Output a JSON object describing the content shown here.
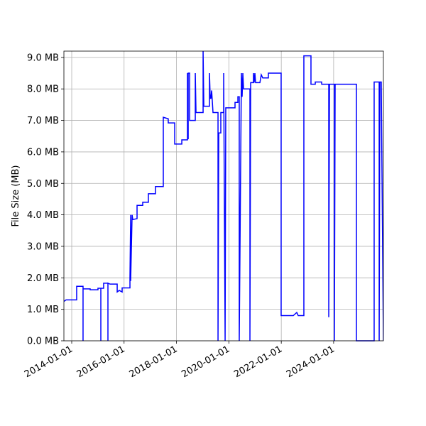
{
  "chart_data": {
    "type": "line",
    "ylabel": "File Size (MB)",
    "color": "#0000ff",
    "grid": true,
    "xlim": [
      "2013-09-14",
      "2025-11-25"
    ],
    "xticks": [
      "2014-01-01",
      "2016-01-01",
      "2018-01-01",
      "2020-01-01",
      "2022-01-01",
      "2024-01-01"
    ],
    "ylim": [
      0,
      9.2
    ],
    "yticks": [
      {
        "value": 0,
        "label": "0.0 MB"
      },
      {
        "value": 1,
        "label": "1.0 MB"
      },
      {
        "value": 2,
        "label": "2.0 MB"
      },
      {
        "value": 3,
        "label": "3.0 MB"
      },
      {
        "value": 4,
        "label": "4.0 MB"
      },
      {
        "value": 5,
        "label": "5.0 MB"
      },
      {
        "value": 6,
        "label": "6.0 MB"
      },
      {
        "value": 7,
        "label": "7.0 MB"
      },
      {
        "value": 8,
        "label": "8.0 MB"
      },
      {
        "value": 9,
        "label": "9.0 MB"
      }
    ],
    "x": [
      "2013-09-14",
      "2013-10-14",
      "2014-03-11",
      "2014-03-11",
      "2014-06-08",
      "2014-06-08",
      "2014-06-08",
      "2014-09-15",
      "2014-09-15",
      "2015-01-02",
      "2015-01-02",
      "2015-02-11",
      "2015-02-11",
      "2015-02-11",
      "2015-03-22",
      "2015-03-22",
      "2015-05-21",
      "2015-05-21",
      "2015-05-21",
      "2015-06-20",
      "2015-09-27",
      "2015-09-27",
      "2015-10-26",
      "2015-12-05",
      "2015-12-05",
      "2016-03-23",
      "2016-03-23",
      "2016-04-02",
      "2016-04-02",
      "2016-04-22",
      "2016-05-01",
      "2016-06-30",
      "2016-06-30",
      "2016-09-17",
      "2016-09-17",
      "2016-12-05",
      "2016-12-05",
      "2017-03-14",
      "2017-03-14",
      "2017-07-01",
      "2017-07-01",
      "2017-09-08",
      "2017-09-08",
      "2017-12-07",
      "2017-12-07",
      "2018-03-16",
      "2018-03-16",
      "2018-06-03",
      "2018-06-03",
      "2018-06-13",
      "2018-06-13",
      "2018-07-03",
      "2018-07-03",
      "2018-09-20",
      "2018-09-20",
      "2018-09-30",
      "2019-01-07",
      "2019-01-07",
      "2019-01-17",
      "2019-04-06",
      "2019-04-06",
      "2019-04-16",
      "2019-04-26",
      "2019-05-06",
      "2019-05-25",
      "2019-08-03",
      "2019-08-03",
      "2019-08-13",
      "2019-09-11",
      "2019-09-11",
      "2019-10-21",
      "2019-10-21",
      "2019-11-10",
      "2019-11-19",
      "2020-03-27",
      "2020-03-27",
      "2020-05-06",
      "2020-05-06",
      "2020-05-25",
      "2020-05-25",
      "2020-06-24",
      "2020-07-04",
      "2020-07-14",
      "2020-07-24",
      "2020-10-21",
      "2020-10-21",
      "2020-10-31",
      "2020-12-09",
      "2020-12-09",
      "2020-12-19",
      "2020-12-29",
      "2021-01-08",
      "2021-03-09",
      "2021-03-28",
      "2021-04-17",
      "2021-07-05",
      "2021-07-05",
      "2021-12-30",
      "2021-12-30",
      "2022-06-17",
      "2022-08-05",
      "2022-08-25",
      "2022-11-12",
      "2022-11-12",
      "2023-02-19",
      "2023-02-19",
      "2023-04-20",
      "2023-04-20",
      "2023-07-18",
      "2023-07-18",
      "2023-10-25",
      "2023-10-25",
      "2023-11-04",
      "2024-01-12",
      "2024-01-12",
      "2024-01-22",
      "2024-11-14",
      "2024-11-14",
      "2025-07-19",
      "2025-07-19",
      "2025-09-27",
      "2025-09-27",
      "2025-10-07",
      "2025-10-26",
      "2025-11-25"
    ],
    "values": [
      1.25,
      1.3,
      1.3,
      1.73,
      1.73,
      0,
      1.65,
      1.65,
      1.62,
      1.62,
      1.67,
      1.67,
      0,
      1.67,
      1.67,
      1.83,
      1.83,
      0,
      1.83,
      1.8,
      1.8,
      1.55,
      1.6,
      1.55,
      1.68,
      1.68,
      2.0,
      4.0,
      1.9,
      4.0,
      3.85,
      3.88,
      4.3,
      4.3,
      4.4,
      4.4,
      4.67,
      4.67,
      4.9,
      4.9,
      7.1,
      7.05,
      6.92,
      6.92,
      6.25,
      6.25,
      6.38,
      6.38,
      8.5,
      6.4,
      8.5,
      8.5,
      7.0,
      7.0,
      8.5,
      7.25,
      7.25,
      9.2,
      7.45,
      7.45,
      8.5,
      7.7,
      7.7,
      7.95,
      7.25,
      7.25,
      0,
      6.6,
      6.6,
      7.25,
      7.25,
      8.5,
      0,
      7.4,
      7.4,
      7.57,
      7.57,
      7.75,
      7.75,
      0,
      8.5,
      7.75,
      8.5,
      8.0,
      8.0,
      0,
      8.2,
      8.2,
      8.5,
      8.2,
      8.5,
      8.2,
      8.2,
      8.45,
      8.35,
      8.35,
      8.5,
      8.5,
      0.8,
      0.8,
      0.9,
      0.8,
      0.8,
      9.05,
      9.05,
      8.15,
      8.15,
      8.22,
      8.22,
      8.15,
      8.15,
      0.75,
      8.15,
      8.15,
      0,
      8.15,
      8.15,
      0,
      0,
      8.22,
      8.22,
      0,
      8.22,
      8.22,
      0
    ]
  }
}
